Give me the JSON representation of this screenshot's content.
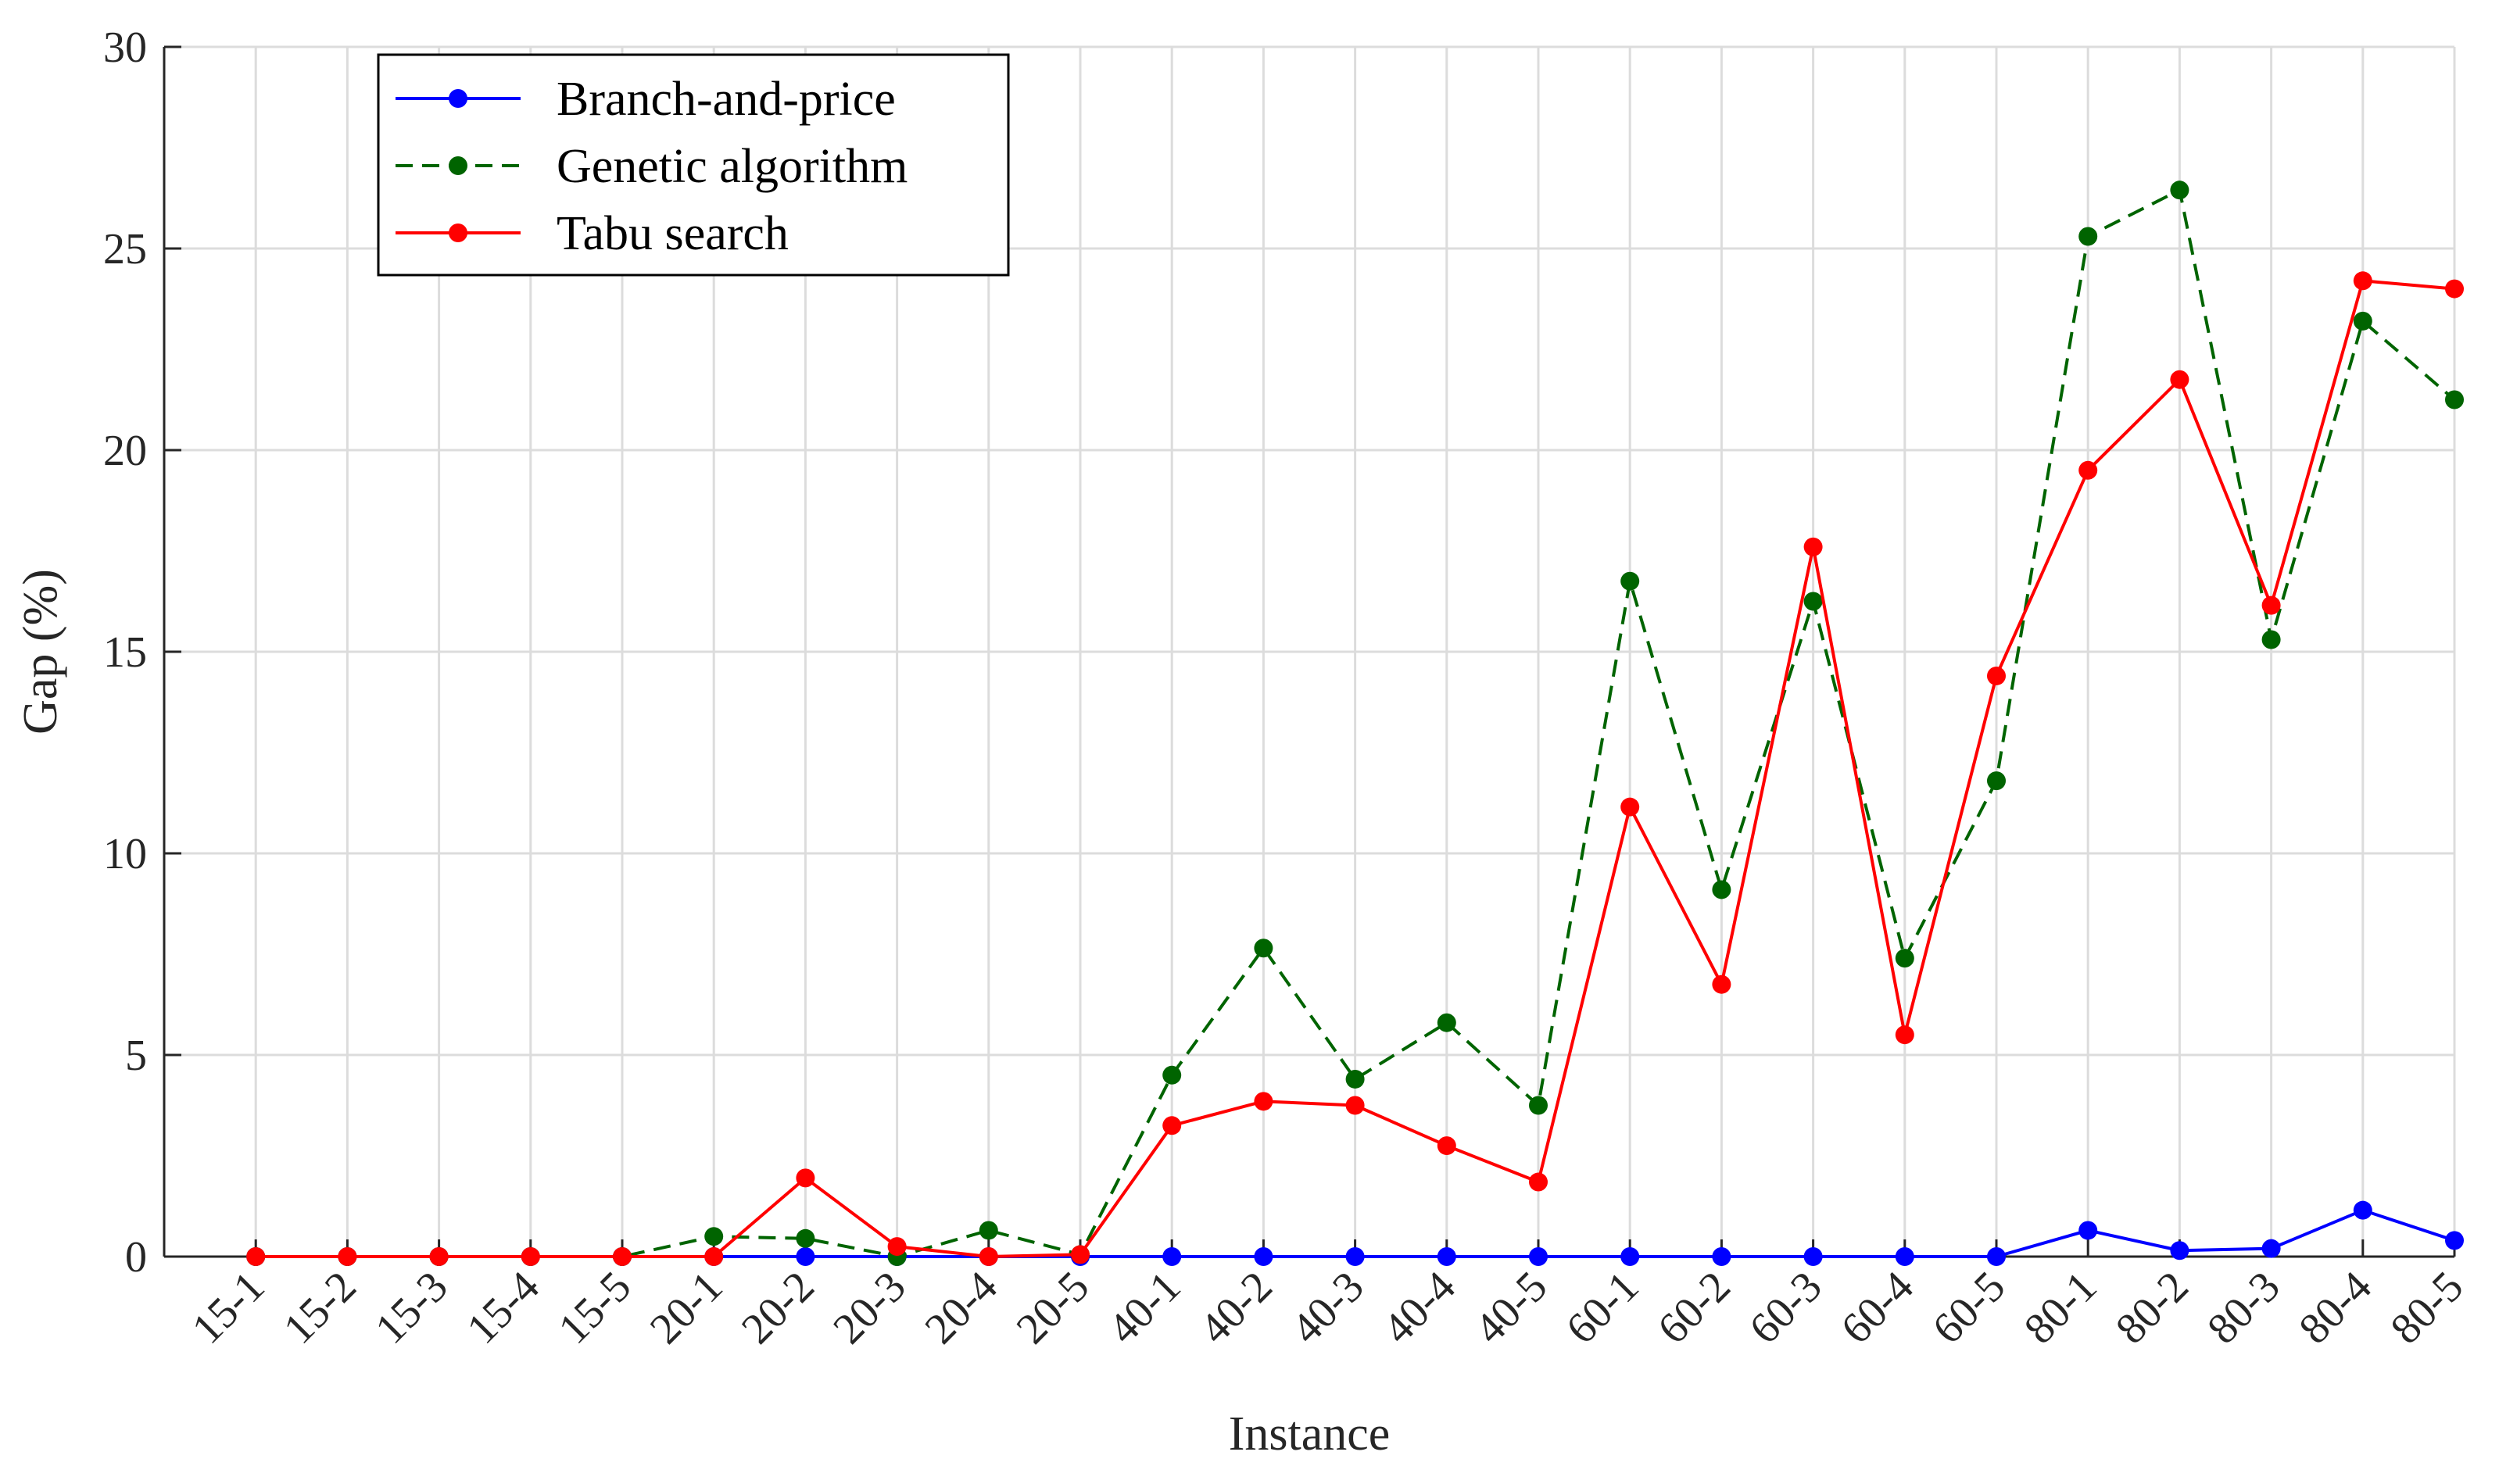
{
  "chart_data": {
    "type": "line",
    "xlabel": "Instance",
    "ylabel": "Gap (%)",
    "ylim": [
      0,
      30
    ],
    "yticks": [
      0,
      5,
      10,
      15,
      20,
      25,
      30
    ],
    "grid": true,
    "legend_position": "top-left",
    "categories": [
      "15-1",
      "15-2",
      "15-3",
      "15-4",
      "15-5",
      "20-1",
      "20-2",
      "20-3",
      "20-4",
      "20-5",
      "40-1",
      "40-2",
      "40-3",
      "40-4",
      "40-5",
      "60-1",
      "60-2",
      "60-3",
      "60-4",
      "60-5",
      "80-1",
      "80-2",
      "80-3",
      "80-4",
      "80-5"
    ],
    "series": [
      {
        "name": "Branch-and-price",
        "color": "#0000ff",
        "line_style": "solid",
        "values": [
          0,
          0,
          0,
          0,
          0,
          0,
          0,
          0,
          0,
          0,
          0,
          0,
          0,
          0,
          0,
          0,
          0,
          0,
          0,
          0,
          0.65,
          0.15,
          0.2,
          1.15,
          0.4
        ]
      },
      {
        "name": "Genetic algorithm",
        "color": "#006400",
        "line_style": "dashed",
        "values": [
          0,
          0,
          0,
          0,
          0,
          0.5,
          0.45,
          0,
          0.65,
          0.05,
          4.5,
          7.65,
          4.4,
          5.8,
          3.75,
          16.75,
          9.1,
          16.25,
          7.4,
          11.8,
          25.3,
          26.45,
          15.3,
          23.2,
          21.25
        ]
      },
      {
        "name": "Tabu search",
        "color": "#ff0000",
        "line_style": "solid",
        "values": [
          0,
          0,
          0,
          0,
          0,
          0,
          1.95,
          0.25,
          0,
          0.05,
          3.25,
          3.85,
          3.75,
          2.75,
          1.85,
          11.15,
          6.75,
          17.6,
          5.5,
          14.4,
          19.5,
          21.75,
          16.15,
          24.2,
          24.0
        ]
      }
    ]
  }
}
